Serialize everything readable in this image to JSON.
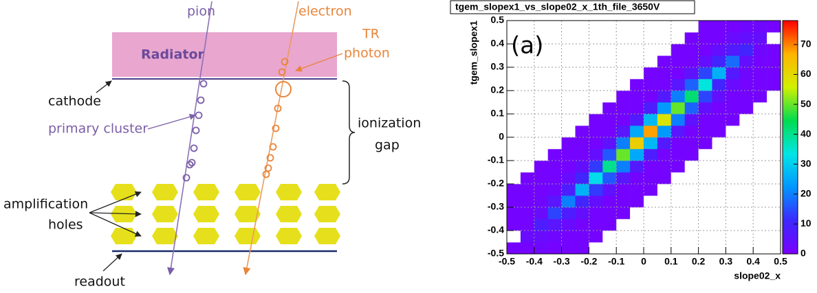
{
  "diagram": {
    "radiator": "Radiator",
    "pion": "pion",
    "electron": "electron",
    "tr_photon": [
      "TR",
      "photon"
    ],
    "cathode": "cathode",
    "primary_cluster": "primary cluster",
    "ionization_gap": [
      "ionization",
      "gap"
    ],
    "amplification_holes": [
      "amplification",
      "holes"
    ],
    "readout": "readout"
  },
  "chart_data": {
    "type": "heatmap",
    "title": "tgem_slopex1_vs_slope02_x_1th_file_3650V",
    "annotation": "(a)",
    "x_label": "slope02_x",
    "y_label": "tgem_slopex1",
    "xlim": [
      -0.5,
      0.5
    ],
    "ylim": [
      -0.5,
      0.5
    ],
    "xticks": [
      -0.5,
      -0.4,
      -0.3,
      -0.2,
      -0.1,
      0,
      0.1,
      0.2,
      0.3,
      0.4,
      0.5
    ],
    "yticks": [
      -0.5,
      -0.4,
      -0.3,
      -0.2,
      -0.1,
      0,
      0.1,
      0.2,
      0.3,
      0.4,
      0.5
    ],
    "zlim": [
      0,
      78
    ],
    "zticks": [
      0,
      10,
      20,
      30,
      40,
      50,
      60,
      70
    ],
    "colorscale": [
      "#7a00ff",
      "#3c28ff",
      "#0096ff",
      "#00e6e6",
      "#00dc50",
      "#d2f000",
      "#ffb400",
      "#ff0000"
    ],
    "grid": true,
    "z": [
      [
        1,
        1,
        2,
        1,
        1,
        1,
        0,
        0,
        0,
        0,
        0,
        0,
        0,
        0,
        0,
        0,
        0,
        0,
        0,
        0
      ],
      [
        0,
        3,
        3,
        2,
        1,
        1,
        1,
        0,
        0,
        0,
        0,
        0,
        0,
        0,
        0,
        0,
        0,
        0,
        0,
        0
      ],
      [
        1,
        1,
        8,
        6,
        3,
        1,
        1,
        1,
        0,
        0,
        0,
        0,
        0,
        0,
        0,
        0,
        0,
        0,
        0,
        0
      ],
      [
        1,
        1,
        3,
        14,
        8,
        4,
        1,
        1,
        1,
        0,
        0,
        0,
        0,
        0,
        0,
        0,
        0,
        0,
        0,
        0
      ],
      [
        1,
        1,
        2,
        6,
        20,
        10,
        4,
        1,
        1,
        1,
        0,
        0,
        0,
        0,
        0,
        0,
        0,
        0,
        0,
        0
      ],
      [
        1,
        1,
        1,
        2,
        8,
        26,
        13,
        5,
        1,
        1,
        1,
        0,
        0,
        0,
        0,
        0,
        0,
        0,
        0,
        0
      ],
      [
        0,
        1,
        1,
        1,
        3,
        10,
        32,
        16,
        6,
        1,
        1,
        1,
        0,
        0,
        0,
        0,
        0,
        0,
        0,
        0
      ],
      [
        0,
        0,
        1,
        1,
        1,
        4,
        13,
        40,
        20,
        7,
        1,
        1,
        1,
        0,
        0,
        0,
        0,
        0,
        0,
        0
      ],
      [
        0,
        0,
        0,
        1,
        1,
        1,
        4,
        16,
        50,
        25,
        8,
        1,
        1,
        1,
        0,
        0,
        0,
        0,
        0,
        0
      ],
      [
        0,
        0,
        0,
        0,
        1,
        1,
        1,
        5,
        20,
        62,
        27,
        7,
        1,
        1,
        1,
        0,
        0,
        0,
        0,
        0
      ],
      [
        0,
        0,
        0,
        0,
        0,
        1,
        1,
        1,
        6,
        25,
        68,
        23,
        6,
        1,
        1,
        1,
        0,
        0,
        0,
        0
      ],
      [
        0,
        0,
        0,
        0,
        0,
        0,
        1,
        1,
        1,
        7,
        27,
        58,
        20,
        5,
        1,
        1,
        1,
        0,
        0,
        0
      ],
      [
        0,
        0,
        0,
        0,
        0,
        0,
        0,
        1,
        1,
        1,
        8,
        23,
        50,
        17,
        4,
        1,
        1,
        1,
        0,
        0
      ],
      [
        0,
        0,
        0,
        0,
        0,
        0,
        0,
        0,
        1,
        1,
        1,
        7,
        20,
        42,
        14,
        4,
        1,
        1,
        1,
        0
      ],
      [
        0,
        0,
        0,
        0,
        0,
        0,
        0,
        0,
        0,
        1,
        1,
        1,
        6,
        17,
        34,
        10,
        3,
        1,
        1,
        1
      ],
      [
        0,
        0,
        0,
        0,
        0,
        0,
        0,
        0,
        0,
        0,
        1,
        1,
        1,
        5,
        14,
        26,
        7,
        2,
        1,
        1
      ],
      [
        0,
        0,
        0,
        0,
        0,
        0,
        0,
        0,
        0,
        0,
        0,
        1,
        1,
        1,
        4,
        10,
        18,
        4,
        1,
        1
      ],
      [
        0,
        0,
        0,
        0,
        0,
        0,
        0,
        0,
        0,
        0,
        0,
        0,
        1,
        1,
        1,
        4,
        7,
        10,
        2,
        1
      ],
      [
        0,
        0,
        0,
        0,
        0,
        0,
        0,
        0,
        0,
        0,
        0,
        0,
        0,
        1,
        1,
        1,
        3,
        4,
        4,
        0
      ],
      [
        0,
        0,
        0,
        0,
        0,
        0,
        0,
        0,
        0,
        0,
        0,
        0,
        0,
        0,
        1,
        1,
        1,
        2,
        2,
        1
      ]
    ]
  }
}
